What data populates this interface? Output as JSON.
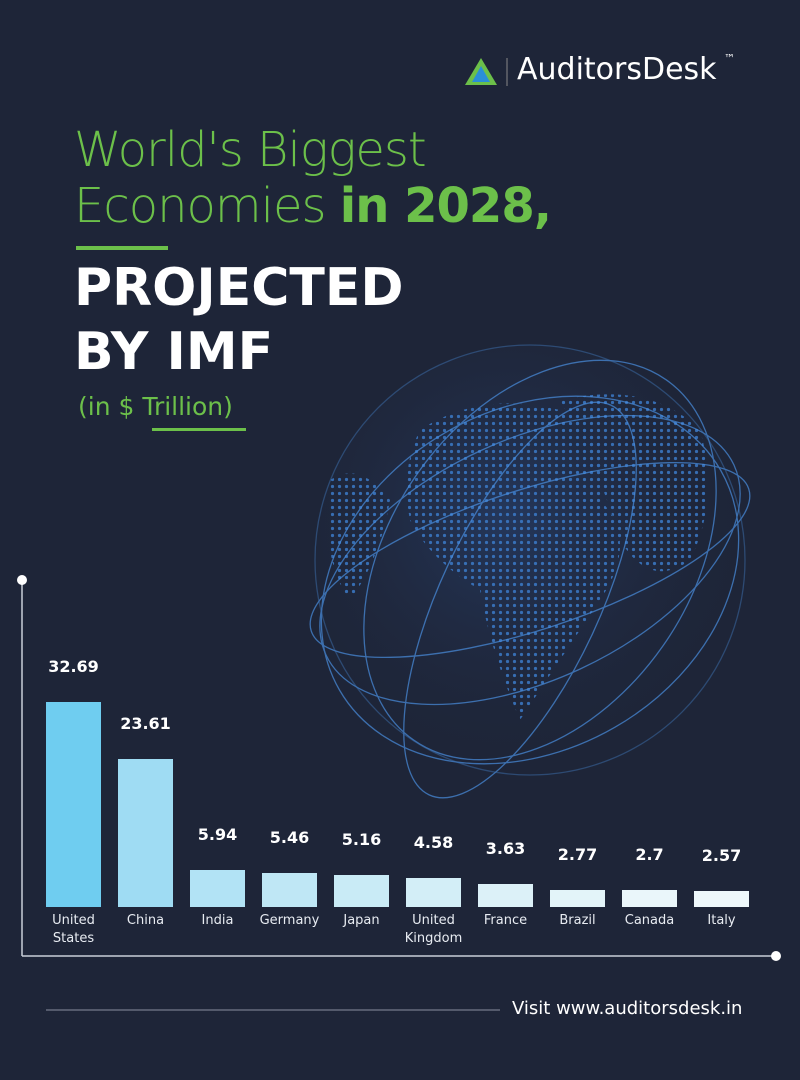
{
  "brand": {
    "name": "AuditorsDesk",
    "trademark": "™"
  },
  "heading": {
    "line1": "World's Biggest",
    "line2_light": "Economies",
    "line2_bold": "in 2028,",
    "line3": "PROJECTED",
    "line4": "BY IMF",
    "unit": "(in $ Trillion)"
  },
  "chart_data": {
    "type": "bar",
    "categories": [
      "United States",
      "China",
      "India",
      "Germany",
      "Japan",
      "United Kingdom",
      "France",
      "Brazil",
      "Canada",
      "Italy"
    ],
    "values": [
      32.69,
      23.61,
      5.94,
      5.46,
      5.16,
      4.58,
      3.63,
      2.77,
      2.7,
      2.57
    ],
    "colors": [
      "#6fcdf0",
      "#9fdcf3",
      "#b2e3f5",
      "#bfe7f5",
      "#c9ebf6",
      "#d3eef7",
      "#dcf1f8",
      "#e3f4f9",
      "#eaf6fa",
      "#eef8fb"
    ]
  },
  "footer": {
    "text": "Visit www.auditorsdesk.in"
  }
}
